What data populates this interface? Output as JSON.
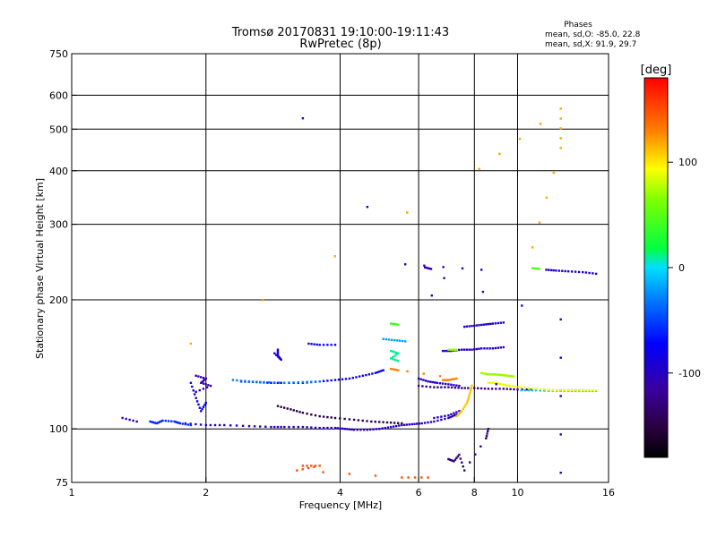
{
  "chart_data": {
    "type": "scatter",
    "title": "Tromsø 20170831 19:10:00-19:11:43",
    "subtitle": "RwPretec (8p)",
    "xlabel": "Frequency [MHz]",
    "ylabel": "Stationary phase Virtual Height [km]",
    "x_scale": "log",
    "y_scale": "log",
    "xlim": [
      1,
      16
    ],
    "ylim": [
      75,
      750
    ],
    "x_ticks": [
      1,
      2,
      4,
      6,
      8,
      10,
      16
    ],
    "y_ticks": [
      75,
      100,
      200,
      300,
      400,
      500,
      600,
      750
    ],
    "x_gridlines": [
      2,
      4,
      6,
      8,
      10
    ],
    "y_gridlines": [
      100,
      200,
      300,
      400,
      500,
      600
    ],
    "grid": true,
    "stats": {
      "title": "Phases",
      "line_o": "mean, sd,O: -85.0, 22.8",
      "line_x": "mean, sd,X:  91.9, 29.7"
    },
    "colorbar": {
      "label": "[deg]",
      "range": [
        -180,
        180
      ],
      "ticks": [
        100,
        0,
        -100
      ],
      "placement": "right"
    },
    "traces": [
      {
        "phase": -100,
        "points": [
          [
            1.8,
            103
          ],
          [
            2.0,
            102
          ],
          [
            2.2,
            102
          ],
          [
            2.5,
            101.5
          ],
          [
            2.8,
            101
          ],
          [
            3.0,
            101
          ],
          [
            3.3,
            101
          ],
          [
            3.6,
            100.5
          ],
          [
            3.9,
            100.5
          ],
          [
            4.1,
            100
          ],
          [
            4.3,
            99.5
          ],
          [
            4.6,
            99.5
          ],
          [
            4.9,
            100
          ],
          [
            5.2,
            101
          ],
          [
            5.5,
            102
          ],
          [
            5.8,
            102.5
          ],
          [
            6.1,
            103
          ],
          [
            6.5,
            104
          ],
          [
            7.0,
            106
          ],
          [
            7.3,
            108
          ]
        ]
      },
      {
        "phase": -60,
        "points": [
          [
            1.5,
            104
          ],
          [
            1.55,
            103
          ],
          [
            1.6,
            104.5
          ],
          [
            1.7,
            104
          ],
          [
            1.75,
            103
          ],
          [
            1.85,
            102
          ]
        ]
      },
      {
        "phase": -110,
        "points": [
          [
            1.3,
            106
          ],
          [
            1.4,
            104
          ]
        ]
      },
      {
        "phase": -80,
        "points": [
          [
            2.4,
            129
          ],
          [
            2.6,
            128.5
          ],
          [
            2.8,
            128
          ],
          [
            3.0,
            128
          ],
          [
            3.3,
            128
          ],
          [
            3.6,
            129
          ],
          [
            3.9,
            130
          ],
          [
            4.2,
            131
          ],
          [
            4.5,
            133
          ],
          [
            4.8,
            135
          ],
          [
            5.0,
            137
          ]
        ]
      },
      {
        "phase": -30,
        "points": [
          [
            2.3,
            130
          ],
          [
            2.5,
            129
          ],
          [
            2.7,
            128.5
          ],
          [
            3.0,
            128
          ],
          [
            3.3,
            128.5
          ],
          [
            3.6,
            129
          ]
        ]
      },
      {
        "phase": -120,
        "points": [
          [
            6.0,
            126
          ],
          [
            6.5,
            125
          ],
          [
            7.0,
            125
          ],
          [
            7.5,
            124.5
          ],
          [
            8.0,
            124.5
          ],
          [
            8.6,
            124
          ],
          [
            9.3,
            124
          ],
          [
            10.0,
            123.5
          ],
          [
            11.0,
            123.5
          ],
          [
            12.0,
            123
          ],
          [
            13.0,
            123
          ],
          [
            14.0,
            123
          ]
        ]
      },
      {
        "phase": -10,
        "points": [
          [
            10.2,
            123
          ],
          [
            11.0,
            123
          ],
          [
            12.0,
            122.5
          ],
          [
            13.0,
            122.5
          ],
          [
            14.0,
            122.5
          ],
          [
            15.0,
            122.5
          ]
        ]
      },
      {
        "phase": 90,
        "points": [
          [
            8.6,
            128
          ],
          [
            8.9,
            128
          ],
          [
            9.2,
            127
          ],
          [
            9.6,
            126
          ],
          [
            10.2,
            125
          ],
          [
            11.0,
            124
          ],
          [
            12.0,
            123
          ],
          [
            13.0,
            123
          ],
          [
            14.0,
            123
          ],
          [
            15.0,
            123
          ]
        ]
      },
      {
        "phase": 70,
        "points": [
          [
            8.3,
            135
          ],
          [
            8.6,
            134
          ],
          [
            8.9,
            134
          ],
          [
            9.2,
            133.5
          ],
          [
            9.5,
            133
          ],
          [
            9.8,
            132.5
          ]
        ]
      },
      {
        "phase": -100,
        "points": [
          [
            6.0,
            131
          ],
          [
            6.3,
            129
          ],
          [
            6.6,
            128
          ],
          [
            7.0,
            127
          ],
          [
            7.4,
            126
          ]
        ]
      },
      {
        "phase": -150,
        "points": [
          [
            2.9,
            113
          ],
          [
            3.1,
            111
          ],
          [
            3.3,
            109
          ],
          [
            3.6,
            107
          ],
          [
            3.9,
            106
          ],
          [
            4.3,
            105
          ],
          [
            4.7,
            104
          ],
          [
            5.1,
            103.5
          ],
          [
            5.5,
            103
          ]
        ]
      },
      {
        "phase": -100,
        "points": [
          [
            6.5,
            106
          ],
          [
            7.0,
            107.5
          ],
          [
            7.4,
            110
          ]
        ]
      },
      {
        "phase": 110,
        "points": [
          [
            7.3,
            107
          ],
          [
            7.5,
            110
          ],
          [
            7.7,
            115
          ],
          [
            7.8,
            120
          ],
          [
            7.9,
            126
          ]
        ]
      },
      {
        "phase": -100,
        "points": [
          [
            6.8,
            152
          ],
          [
            7.1,
            152
          ],
          [
            7.5,
            153
          ],
          [
            7.9,
            153
          ],
          [
            8.3,
            154
          ],
          [
            8.8,
            154
          ],
          [
            9.3,
            155
          ]
        ]
      },
      {
        "phase": 70,
        "points": [
          [
            7.0,
            153
          ],
          [
            7.3,
            153
          ]
        ]
      },
      {
        "phase": -100,
        "points": [
          [
            7.6,
            173
          ],
          [
            8.0,
            174
          ],
          [
            8.4,
            175
          ],
          [
            8.8,
            176
          ],
          [
            9.3,
            177
          ]
        ]
      },
      {
        "phase": 40,
        "points": [
          [
            5.2,
            176
          ],
          [
            5.4,
            175
          ]
        ]
      },
      {
        "phase": 10,
        "points": [
          [
            5.2,
            152
          ],
          [
            5.4,
            150
          ],
          [
            5.2,
            146
          ],
          [
            5.4,
            144
          ]
        ]
      },
      {
        "phase": -20,
        "points": [
          [
            5.0,
            162
          ],
          [
            5.3,
            161
          ],
          [
            5.6,
            160
          ]
        ]
      },
      {
        "phase": -80,
        "points": [
          [
            3.4,
            158
          ],
          [
            3.6,
            157
          ],
          [
            3.9,
            157
          ]
        ]
      },
      {
        "phase": -90,
        "points": [
          [
            2.9,
            153
          ],
          [
            2.9,
            148
          ],
          [
            2.95,
            145
          ],
          [
            2.85,
            150
          ]
        ]
      },
      {
        "phase": -110,
        "points": [
          [
            1.9,
            133
          ],
          [
            2.0,
            131
          ],
          [
            1.95,
            128
          ],
          [
            2.05,
            126
          ],
          [
            1.9,
            122
          ]
        ]
      },
      {
        "phase": -80,
        "points": [
          [
            1.85,
            128
          ],
          [
            1.9,
            118
          ],
          [
            1.95,
            110
          ],
          [
            2.0,
            115
          ]
        ]
      },
      {
        "phase": 50,
        "points": [
          [
            10.8,
            237
          ],
          [
            11.2,
            236
          ]
        ]
      },
      {
        "phase": -90,
        "points": [
          [
            11.6,
            235
          ],
          [
            12.2,
            234
          ],
          [
            13.0,
            233
          ],
          [
            14.0,
            232
          ],
          [
            15.0,
            230
          ]
        ]
      },
      {
        "phase": -110,
        "points": [
          [
            6.2,
            238
          ],
          [
            6.4,
            236
          ]
        ]
      },
      {
        "phase": 130,
        "points": [
          [
            6.8,
            130
          ],
          [
            7.0,
            130
          ],
          [
            7.3,
            131
          ],
          [
            5.2,
            138
          ],
          [
            5.4,
            137
          ]
        ]
      },
      {
        "phase": 150,
        "points": [
          [
            3.3,
            82
          ],
          [
            3.6,
            82
          ],
          [
            3.2,
            80
          ],
          [
            5.5,
            77
          ],
          [
            6.3,
            77
          ]
        ]
      },
      {
        "phase": 120,
        "points": [
          [
            1.85,
            158
          ],
          [
            8.2,
            404
          ],
          [
            12.5,
            558
          ],
          [
            12.5,
            452
          ],
          [
            10.8,
            265
          ]
        ]
      },
      {
        "phase": -100,
        "points": [
          [
            3.3,
            530
          ],
          [
            12.5,
            79
          ],
          [
            12.5,
            180
          ],
          [
            5.6,
            242
          ],
          [
            8.3,
            235
          ]
        ]
      },
      {
        "phase": -130,
        "points": [
          [
            7.0,
            85
          ],
          [
            7.2,
            84
          ],
          [
            7.4,
            87
          ],
          [
            7.6,
            80
          ],
          [
            8.5,
            95
          ],
          [
            8.6,
            100
          ]
        ]
      }
    ]
  }
}
